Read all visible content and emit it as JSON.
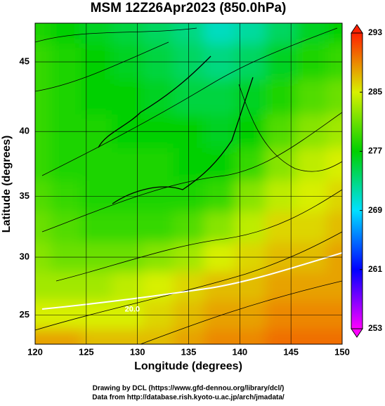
{
  "chart_data": {
    "type": "map-field",
    "title": "MSM 12Z26Apr2023 (850.0hPa)",
    "x_label": "Longitude (degrees)",
    "y_label": "Latitude  (degrees)",
    "projection": "mercator",
    "xlim": [
      120,
      150
    ],
    "xticks": [
      120,
      125,
      130,
      135,
      140,
      145,
      150
    ],
    "ylim": [
      22.4,
      47.6
    ],
    "yticks": [
      25,
      30,
      35,
      40,
      45
    ],
    "grid": true,
    "lon": [
      120,
      123,
      126,
      129,
      132,
      135,
      138,
      141,
      144,
      147,
      150
    ],
    "lat": [
      47.5,
      45,
      42.5,
      40,
      37.5,
      35,
      32.5,
      30,
      27.5,
      25,
      22.5
    ],
    "values": [
      [
        278,
        277,
        276,
        275,
        274,
        273,
        271,
        272,
        274,
        276,
        277
      ],
      [
        279,
        278,
        277,
        276,
        275,
        274,
        273,
        274,
        276,
        278,
        279
      ],
      [
        279,
        278,
        277,
        277,
        276,
        275,
        275,
        276,
        278,
        280,
        281
      ],
      [
        279,
        278,
        278,
        277,
        277,
        277,
        276,
        277,
        280,
        282,
        283
      ],
      [
        279,
        278,
        278,
        278,
        278,
        277,
        277,
        279,
        282,
        284,
        285
      ],
      [
        280,
        279,
        278,
        278,
        278,
        278,
        279,
        282,
        284,
        285,
        286
      ],
      [
        281,
        280,
        279,
        279,
        279,
        280,
        282,
        284,
        286,
        286,
        287
      ],
      [
        282,
        281,
        281,
        281,
        282,
        283,
        285,
        286,
        287,
        287,
        288
      ],
      [
        283,
        283,
        283,
        284,
        285,
        286,
        287,
        287,
        288,
        288,
        288
      ],
      [
        285,
        285,
        285,
        285,
        286,
        287,
        288,
        288,
        289,
        289,
        289
      ],
      [
        288,
        288,
        287,
        287,
        287,
        288,
        289,
        289,
        290,
        290,
        290
      ]
    ],
    "colorbar": {
      "lim": [
        253,
        293
      ],
      "ticks": [
        253,
        261,
        269,
        277,
        285,
        293
      ],
      "colors": [
        "#ff00ff",
        "#0000ff",
        "#00e0ff",
        "#00d000",
        "#d8f000",
        "#ff2000"
      ]
    },
    "annotations": [
      "20.0"
    ],
    "credits": [
      "Drawing by DCL (https://www.gfd-dennou.org/library/dcl/)",
      "Data from http://database.rish.kyoto-u.ac.jp/arch/jmadata/"
    ]
  }
}
